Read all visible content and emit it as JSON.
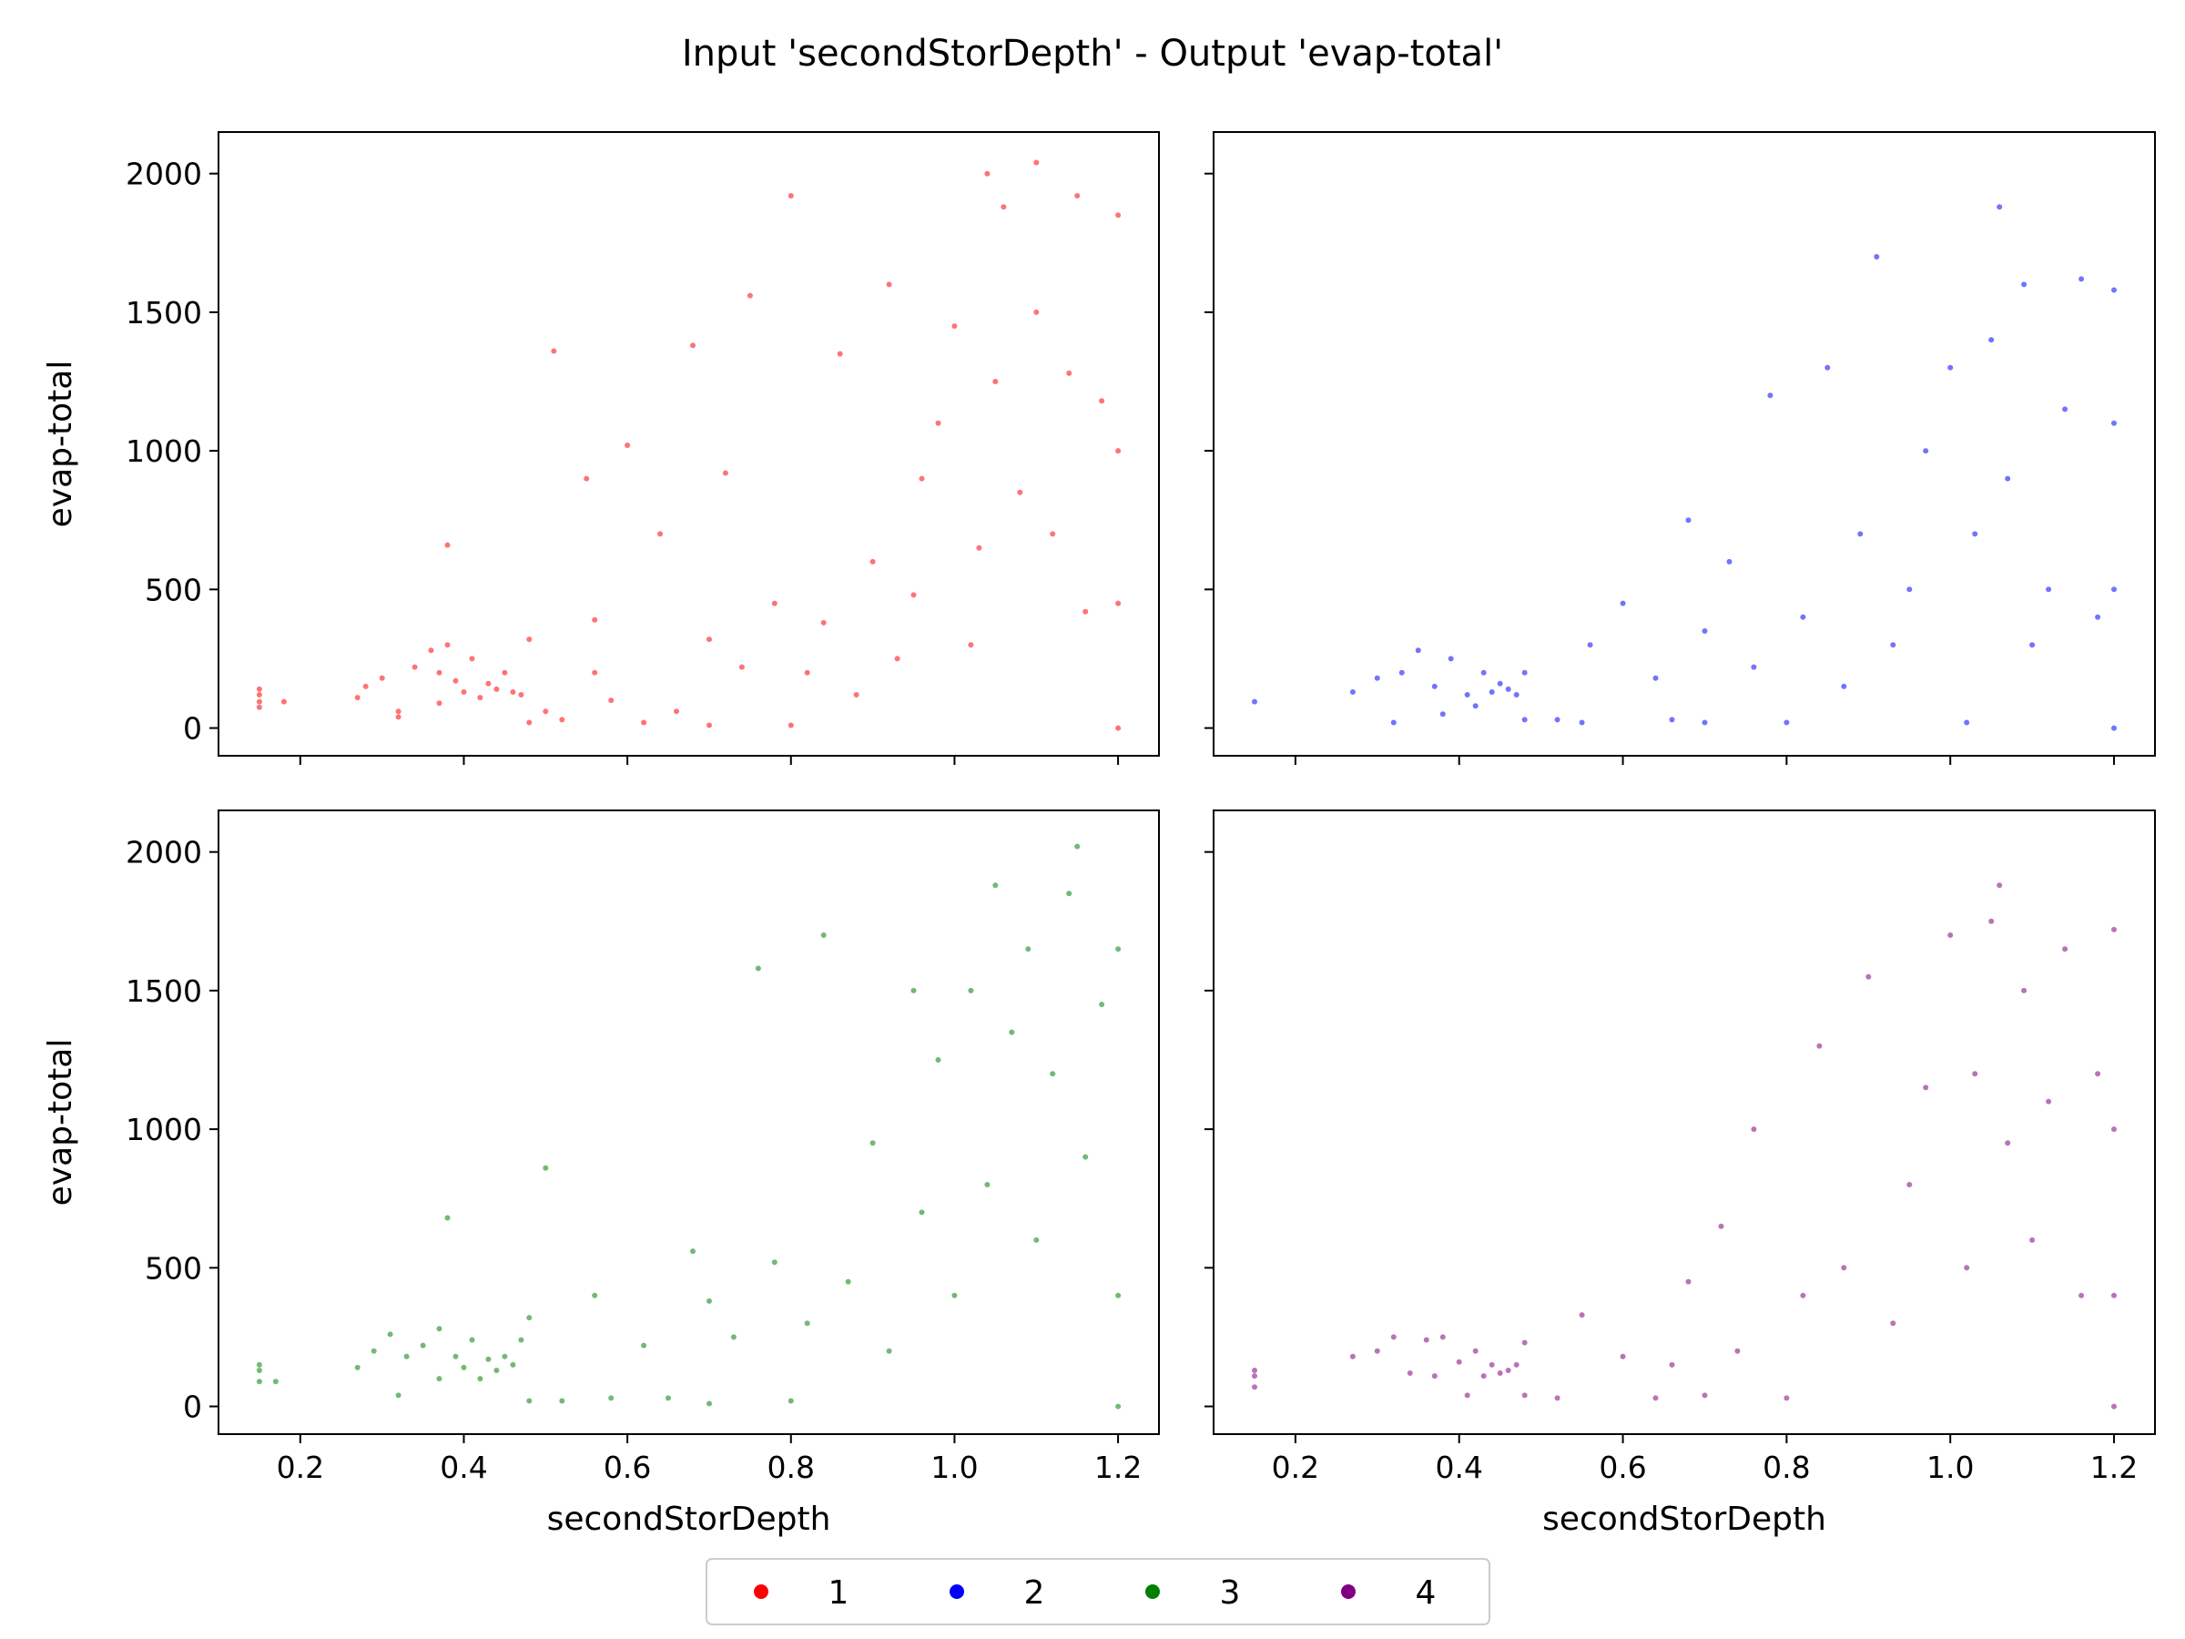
{
  "chart_data": {
    "type": "scatter",
    "title": "Input 'secondStorDepth' - Output 'evap-total'",
    "xlabel": "secondStorDepth",
    "ylabel": "evap-total",
    "xlim": [
      0.1,
      1.25
    ],
    "ylim": [
      -100,
      2150
    ],
    "xticks": [
      0.2,
      0.4,
      0.6,
      0.8,
      1.0,
      1.2
    ],
    "xtick_labels": [
      "0.2",
      "0.4",
      "0.6",
      "0.8",
      "1.0",
      "1.2"
    ],
    "yticks": [
      0,
      500,
      1000,
      1500,
      2000
    ],
    "ytick_labels": [
      "0",
      "500",
      "1000",
      "1500",
      "2000"
    ],
    "grid": false,
    "legend_position": "bottom-center",
    "panel_layout": "2x2",
    "series": [
      {
        "name": "1",
        "color": "#ff0000",
        "points": [
          [
            0.15,
            95
          ],
          [
            0.15,
            120
          ],
          [
            0.15,
            140
          ],
          [
            0.15,
            75
          ],
          [
            0.18,
            95
          ],
          [
            0.27,
            110
          ],
          [
            0.28,
            150
          ],
          [
            0.3,
            180
          ],
          [
            0.32,
            40
          ],
          [
            0.32,
            60
          ],
          [
            0.34,
            220
          ],
          [
            0.36,
            280
          ],
          [
            0.37,
            90
          ],
          [
            0.37,
            200
          ],
          [
            0.38,
            300
          ],
          [
            0.38,
            660
          ],
          [
            0.39,
            170
          ],
          [
            0.4,
            130
          ],
          [
            0.41,
            250
          ],
          [
            0.42,
            110
          ],
          [
            0.43,
            160
          ],
          [
            0.44,
            140
          ],
          [
            0.45,
            200
          ],
          [
            0.46,
            130
          ],
          [
            0.47,
            120
          ],
          [
            0.48,
            20
          ],
          [
            0.48,
            320
          ],
          [
            0.5,
            60
          ],
          [
            0.51,
            1360
          ],
          [
            0.52,
            30
          ],
          [
            0.55,
            900
          ],
          [
            0.56,
            200
          ],
          [
            0.56,
            390
          ],
          [
            0.58,
            100
          ],
          [
            0.6,
            1020
          ],
          [
            0.62,
            20
          ],
          [
            0.64,
            700
          ],
          [
            0.66,
            60
          ],
          [
            0.68,
            1380
          ],
          [
            0.7,
            10
          ],
          [
            0.7,
            320
          ],
          [
            0.72,
            920
          ],
          [
            0.74,
            220
          ],
          [
            0.75,
            1560
          ],
          [
            0.78,
            450
          ],
          [
            0.8,
            10
          ],
          [
            0.8,
            1920
          ],
          [
            0.82,
            200
          ],
          [
            0.84,
            380
          ],
          [
            0.86,
            1350
          ],
          [
            0.88,
            120
          ],
          [
            0.9,
            600
          ],
          [
            0.92,
            1600
          ],
          [
            0.93,
            250
          ],
          [
            0.95,
            480
          ],
          [
            0.96,
            900
          ],
          [
            0.98,
            1100
          ],
          [
            1.0,
            1450
          ],
          [
            1.02,
            300
          ],
          [
            1.03,
            650
          ],
          [
            1.04,
            2000
          ],
          [
            1.05,
            1250
          ],
          [
            1.06,
            1880
          ],
          [
            1.08,
            850
          ],
          [
            1.1,
            1500
          ],
          [
            1.1,
            2040
          ],
          [
            1.12,
            700
          ],
          [
            1.14,
            1280
          ],
          [
            1.15,
            1920
          ],
          [
            1.16,
            420
          ],
          [
            1.18,
            1180
          ],
          [
            1.2,
            0
          ],
          [
            1.2,
            450
          ],
          [
            1.2,
            1000
          ],
          [
            1.2,
            1850
          ]
        ]
      },
      {
        "name": "2",
        "color": "#0000ff",
        "points": [
          [
            0.15,
            95
          ],
          [
            0.27,
            130
          ],
          [
            0.3,
            180
          ],
          [
            0.32,
            20
          ],
          [
            0.33,
            200
          ],
          [
            0.35,
            280
          ],
          [
            0.37,
            150
          ],
          [
            0.38,
            50
          ],
          [
            0.39,
            250
          ],
          [
            0.41,
            120
          ],
          [
            0.42,
            80
          ],
          [
            0.43,
            200
          ],
          [
            0.44,
            130
          ],
          [
            0.45,
            160
          ],
          [
            0.46,
            140
          ],
          [
            0.47,
            120
          ],
          [
            0.48,
            30
          ],
          [
            0.48,
            200
          ],
          [
            0.52,
            30
          ],
          [
            0.55,
            20
          ],
          [
            0.56,
            300
          ],
          [
            0.6,
            450
          ],
          [
            0.64,
            180
          ],
          [
            0.66,
            30
          ],
          [
            0.68,
            750
          ],
          [
            0.7,
            20
          ],
          [
            0.7,
            350
          ],
          [
            0.73,
            600
          ],
          [
            0.76,
            220
          ],
          [
            0.78,
            1200
          ],
          [
            0.8,
            20
          ],
          [
            0.82,
            400
          ],
          [
            0.85,
            1300
          ],
          [
            0.87,
            150
          ],
          [
            0.89,
            700
          ],
          [
            0.91,
            1700
          ],
          [
            0.93,
            300
          ],
          [
            0.95,
            500
          ],
          [
            0.97,
            1000
          ],
          [
            1.0,
            1300
          ],
          [
            1.02,
            20
          ],
          [
            1.03,
            700
          ],
          [
            1.05,
            1400
          ],
          [
            1.06,
            1880
          ],
          [
            1.07,
            900
          ],
          [
            1.09,
            1600
          ],
          [
            1.1,
            300
          ],
          [
            1.12,
            500
          ],
          [
            1.14,
            1150
          ],
          [
            1.16,
            1620
          ],
          [
            1.18,
            400
          ],
          [
            1.2,
            0
          ],
          [
            1.2,
            500
          ],
          [
            1.2,
            1100
          ],
          [
            1.2,
            1580
          ]
        ]
      },
      {
        "name": "3",
        "color": "#008000",
        "points": [
          [
            0.15,
            90
          ],
          [
            0.15,
            130
          ],
          [
            0.15,
            150
          ],
          [
            0.17,
            90
          ],
          [
            0.27,
            140
          ],
          [
            0.29,
            200
          ],
          [
            0.31,
            260
          ],
          [
            0.32,
            40
          ],
          [
            0.33,
            180
          ],
          [
            0.35,
            220
          ],
          [
            0.37,
            100
          ],
          [
            0.37,
            280
          ],
          [
            0.38,
            680
          ],
          [
            0.39,
            180
          ],
          [
            0.4,
            140
          ],
          [
            0.41,
            240
          ],
          [
            0.42,
            100
          ],
          [
            0.43,
            170
          ],
          [
            0.44,
            130
          ],
          [
            0.45,
            180
          ],
          [
            0.46,
            150
          ],
          [
            0.47,
            240
          ],
          [
            0.48,
            20
          ],
          [
            0.48,
            320
          ],
          [
            0.5,
            860
          ],
          [
            0.52,
            20
          ],
          [
            0.56,
            400
          ],
          [
            0.58,
            30
          ],
          [
            0.62,
            220
          ],
          [
            0.65,
            30
          ],
          [
            0.68,
            560
          ],
          [
            0.7,
            10
          ],
          [
            0.7,
            380
          ],
          [
            0.73,
            250
          ],
          [
            0.76,
            1580
          ],
          [
            0.78,
            520
          ],
          [
            0.8,
            20
          ],
          [
            0.82,
            300
          ],
          [
            0.84,
            1700
          ],
          [
            0.87,
            450
          ],
          [
            0.9,
            950
          ],
          [
            0.92,
            200
          ],
          [
            0.95,
            1500
          ],
          [
            0.96,
            700
          ],
          [
            0.98,
            1250
          ],
          [
            1.0,
            400
          ],
          [
            1.02,
            1500
          ],
          [
            1.04,
            800
          ],
          [
            1.05,
            1880
          ],
          [
            1.07,
            1350
          ],
          [
            1.09,
            1650
          ],
          [
            1.1,
            600
          ],
          [
            1.12,
            1200
          ],
          [
            1.14,
            1850
          ],
          [
            1.15,
            2020
          ],
          [
            1.16,
            900
          ],
          [
            1.18,
            1450
          ],
          [
            1.2,
            0
          ],
          [
            1.2,
            400
          ],
          [
            1.2,
            1650
          ]
        ]
      },
      {
        "name": "4",
        "color": "#800080",
        "points": [
          [
            0.15,
            70
          ],
          [
            0.15,
            110
          ],
          [
            0.15,
            130
          ],
          [
            0.27,
            180
          ],
          [
            0.3,
            200
          ],
          [
            0.32,
            250
          ],
          [
            0.34,
            120
          ],
          [
            0.36,
            240
          ],
          [
            0.37,
            110
          ],
          [
            0.38,
            250
          ],
          [
            0.4,
            160
          ],
          [
            0.41,
            40
          ],
          [
            0.42,
            200
          ],
          [
            0.43,
            110
          ],
          [
            0.44,
            150
          ],
          [
            0.45,
            120
          ],
          [
            0.46,
            130
          ],
          [
            0.47,
            150
          ],
          [
            0.48,
            40
          ],
          [
            0.48,
            230
          ],
          [
            0.52,
            30
          ],
          [
            0.55,
            330
          ],
          [
            0.6,
            180
          ],
          [
            0.64,
            30
          ],
          [
            0.66,
            150
          ],
          [
            0.68,
            450
          ],
          [
            0.7,
            40
          ],
          [
            0.72,
            650
          ],
          [
            0.74,
            200
          ],
          [
            0.76,
            1000
          ],
          [
            0.8,
            30
          ],
          [
            0.82,
            400
          ],
          [
            0.84,
            1300
          ],
          [
            0.87,
            500
          ],
          [
            0.9,
            1550
          ],
          [
            0.93,
            300
          ],
          [
            0.95,
            800
          ],
          [
            0.97,
            1150
          ],
          [
            1.0,
            1700
          ],
          [
            1.02,
            500
          ],
          [
            1.03,
            1200
          ],
          [
            1.05,
            1750
          ],
          [
            1.06,
            1880
          ],
          [
            1.07,
            950
          ],
          [
            1.09,
            1500
          ],
          [
            1.1,
            600
          ],
          [
            1.12,
            1100
          ],
          [
            1.14,
            1650
          ],
          [
            1.16,
            400
          ],
          [
            1.18,
            1200
          ],
          [
            1.2,
            0
          ],
          [
            1.2,
            400
          ],
          [
            1.2,
            1000
          ],
          [
            1.2,
            1720
          ]
        ]
      }
    ]
  }
}
